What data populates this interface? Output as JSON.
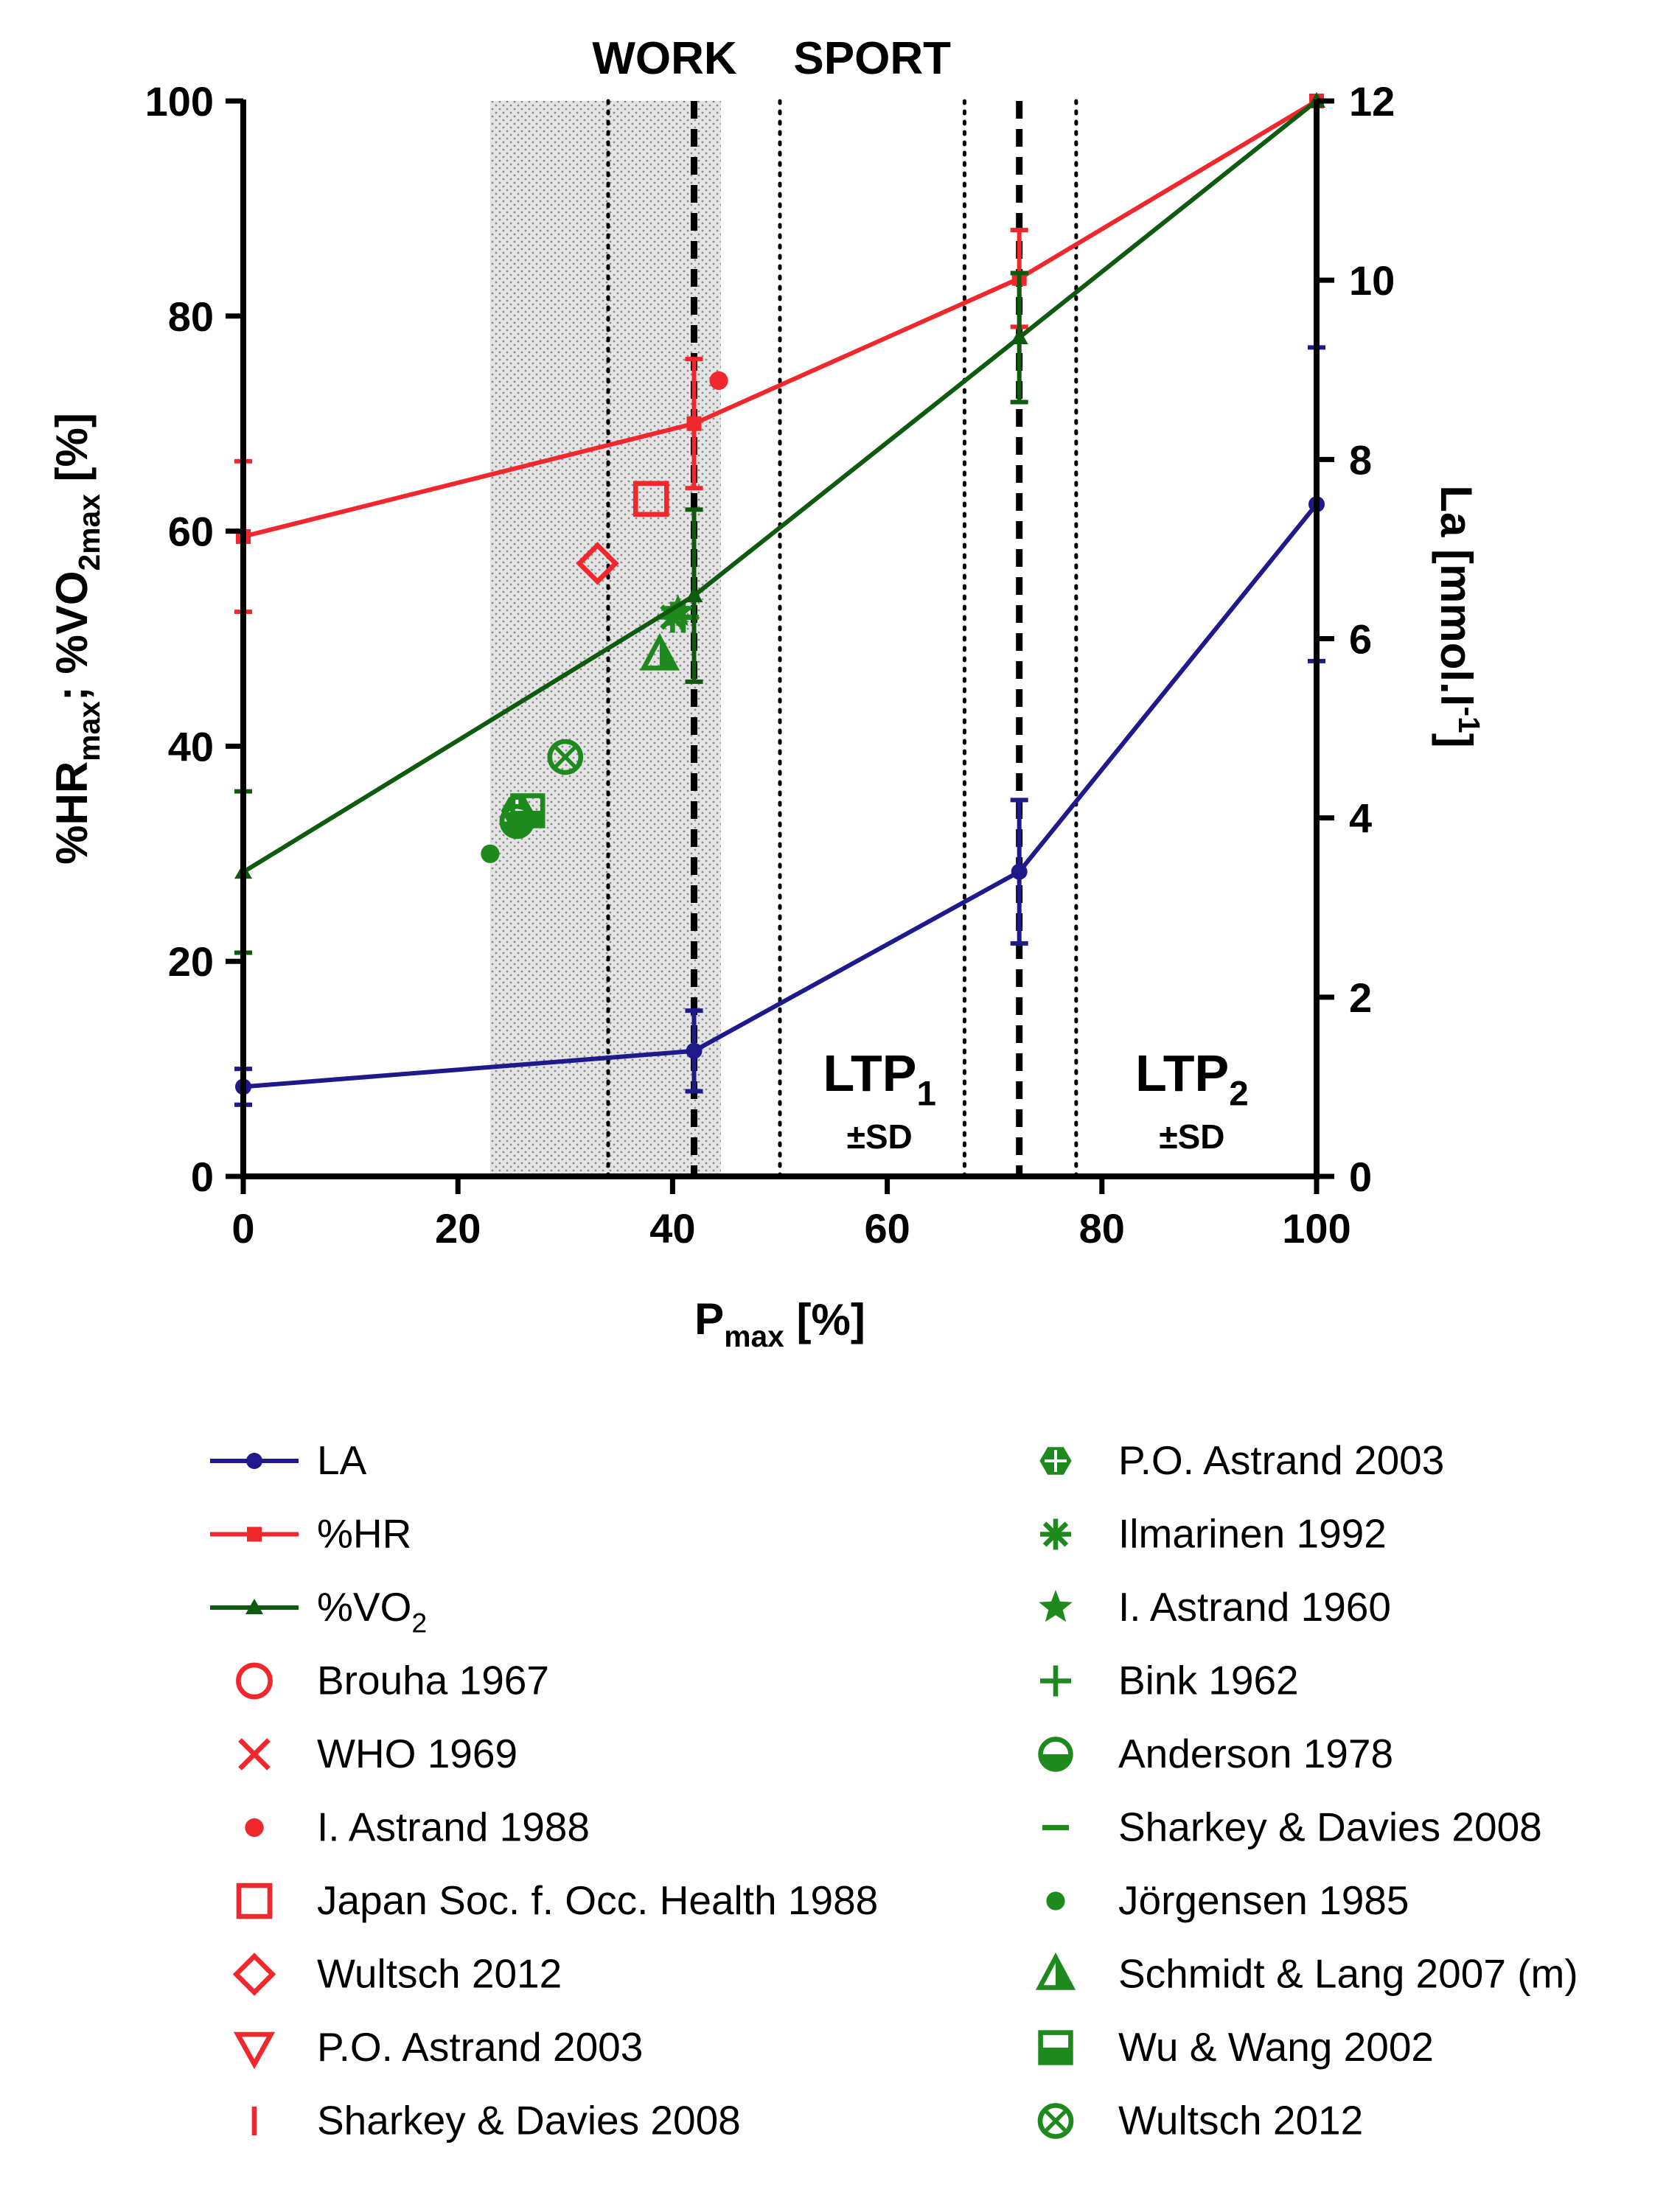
{
  "chart_data": {
    "type": "line",
    "x_axis": {
      "label": "P",
      "label_sub": "max",
      "label_suffix": " [%]",
      "range": [
        0,
        100
      ],
      "ticks": [
        "0",
        "20",
        "40",
        "60",
        "80",
        "100"
      ]
    },
    "y_axis_left": {
      "label_parts": [
        {
          "t": "%HR",
          "sub": false
        },
        {
          "t": "max",
          "sub": true
        },
        {
          "t": "; %VO",
          "sub": false
        },
        {
          "t": "2max",
          "sub": true
        },
        {
          "t": " [%]",
          "sub": false
        }
      ],
      "range": [
        0,
        100
      ],
      "ticks": [
        "0",
        "20",
        "40",
        "60",
        "80",
        "100"
      ]
    },
    "y_axis_right": {
      "label": "La [mmol.l",
      "label_sup": "-1",
      "label_end": "]",
      "range": [
        0,
        12
      ],
      "ticks": [
        "0",
        "2",
        "4",
        "6",
        "8",
        "10",
        "12"
      ]
    },
    "region_labels": {
      "work": "WORK",
      "sport": "SPORT"
    },
    "shaded_work_region": [
      23,
      44.5
    ],
    "threshold_lines": {
      "ltp1": {
        "mean": 42,
        "sd_low": 34,
        "sd_high": 50
      },
      "ltp2": {
        "mean": 72.3,
        "sd_low": 67.2,
        "sd_high": 77.6
      }
    },
    "ltp_labels": [
      {
        "name": "LTP",
        "sub": "1",
        "sd": "±SD"
      },
      {
        "name": "LTP",
        "sub": "2",
        "sd": "±SD"
      }
    ],
    "series": [
      {
        "name": "LA",
        "axis": "right",
        "color": "#1f1a8c",
        "marker": "circle",
        "x": [
          0,
          42,
          72.3,
          100
        ],
        "y": [
          1.0,
          1.4,
          3.4,
          7.5
        ],
        "err": [
          0.2,
          0.45,
          0.8,
          1.75
        ]
      },
      {
        "name": "%HR",
        "axis": "left",
        "color": "#f0282d",
        "marker": "square",
        "x": [
          0,
          42,
          72.3,
          100
        ],
        "y": [
          59.5,
          70,
          83.5,
          100
        ],
        "err": [
          7,
          6,
          4.5,
          0
        ]
      },
      {
        "name": "%VO",
        "name_sub": "2",
        "axis": "left",
        "color": "#0e5a0e",
        "marker": "triangle",
        "x": [
          0,
          42,
          72.3,
          100
        ],
        "y": [
          28.3,
          54,
          78,
          100
        ],
        "err": [
          7.5,
          8,
          6,
          0
        ]
      }
    ],
    "study_points": [
      {
        "name": "I. Astrand 1988",
        "color": "#f0282d",
        "marker": "dot",
        "x": 44.3,
        "y": 74
      },
      {
        "name": "Japan Soc. f. Occ. Health 1988",
        "color": "#f0282d",
        "marker": "square-open",
        "x": 38,
        "y": 63
      },
      {
        "name": "Wultsch 2012",
        "color": "#f0282d",
        "marker": "diamond-open",
        "x": 33,
        "y": 57
      },
      {
        "name": "Jörgensen 1985",
        "color": "#1e8a1e",
        "marker": "dot",
        "x": 23,
        "y": 30
      },
      {
        "name": "P.O. Astrand 2003",
        "color": "#1e8a1e",
        "marker": "hexagon",
        "x": 25.5,
        "y": 34
      },
      {
        "name": "Anderson 1978",
        "color": "#1e8a1e",
        "marker": "half-circle",
        "x": 25.5,
        "y": 33
      },
      {
        "name": "Wu & Wang 2002",
        "color": "#1e8a1e",
        "marker": "square-half",
        "x": 26.5,
        "y": 34
      },
      {
        "name": "Wultsch 2012",
        "color": "#1e8a1e",
        "marker": "circle-x",
        "x": 30,
        "y": 39
      },
      {
        "name": "Schmidt & Lang 2007 (m)",
        "color": "#1e8a1e",
        "marker": "triangle-half",
        "x": 38.8,
        "y": 48.5
      },
      {
        "name": "Ilmarinen 1992",
        "color": "#1e8a1e",
        "marker": "asterisk",
        "x": 40,
        "y": 52
      },
      {
        "name": "I. Astrand 1960",
        "color": "#1e8a1e",
        "marker": "star",
        "x": 40.5,
        "y": 52.5
      },
      {
        "name": "Bink 1962",
        "color": "#1e8a1e",
        "marker": "plus",
        "x": 41,
        "y": 52
      },
      {
        "name": "Sharkey & Davies 2008",
        "color": "#1e8a1e",
        "marker": "dash",
        "x": 40.5,
        "y": 52
      }
    ],
    "legend": {
      "left": [
        {
          "label": "LA",
          "symbol": "line-circle",
          "color": "#1f1a8c"
        },
        {
          "label": "%HR",
          "symbol": "line-square",
          "color": "#f0282d"
        },
        {
          "label": "%VO",
          "sub": "2",
          "symbol": "line-triangle",
          "color": "#0e5a0e"
        },
        {
          "label": "Brouha 1967",
          "symbol": "circle-open",
          "color": "#f0282d"
        },
        {
          "label": "WHO 1969",
          "symbol": "x",
          "color": "#f0282d"
        },
        {
          "label": "I. Astrand 1988",
          "symbol": "dot",
          "color": "#f0282d"
        },
        {
          "label": "Japan Soc. f. Occ. Health 1988",
          "symbol": "square-open",
          "color": "#f0282d"
        },
        {
          "label": "Wultsch 2012",
          "symbol": "diamond-open",
          "color": "#f0282d"
        },
        {
          "label": "P.O. Astrand 2003",
          "symbol": "triangle-down-open",
          "color": "#f0282d"
        },
        {
          "label": "Sharkey & Davies 2008",
          "symbol": "vbar",
          "color": "#f0282d"
        }
      ],
      "right": [
        {
          "label": "P.O. Astrand 2003",
          "symbol": "hexagon",
          "color": "#1e8a1e"
        },
        {
          "label": "Ilmarinen 1992",
          "symbol": "asterisk",
          "color": "#1e8a1e"
        },
        {
          "label": "I. Astrand 1960",
          "symbol": "star",
          "color": "#1e8a1e"
        },
        {
          "label": "Bink 1962",
          "symbol": "plus",
          "color": "#1e8a1e"
        },
        {
          "label": "Anderson 1978",
          "symbol": "half-circle",
          "color": "#1e8a1e"
        },
        {
          "label": "Sharkey & Davies 2008",
          "symbol": "dash",
          "color": "#1e8a1e"
        },
        {
          "label": "Jörgensen 1985",
          "symbol": "dot",
          "color": "#1e8a1e"
        },
        {
          "label": "Schmidt & Lang 2007 (m)",
          "symbol": "triangle-half",
          "color": "#1e8a1e"
        },
        {
          "label": "Wu & Wang 2002",
          "symbol": "square-half",
          "color": "#1e8a1e"
        },
        {
          "label": "Wultsch 2012",
          "symbol": "circle-x",
          "color": "#1e8a1e"
        }
      ]
    }
  }
}
